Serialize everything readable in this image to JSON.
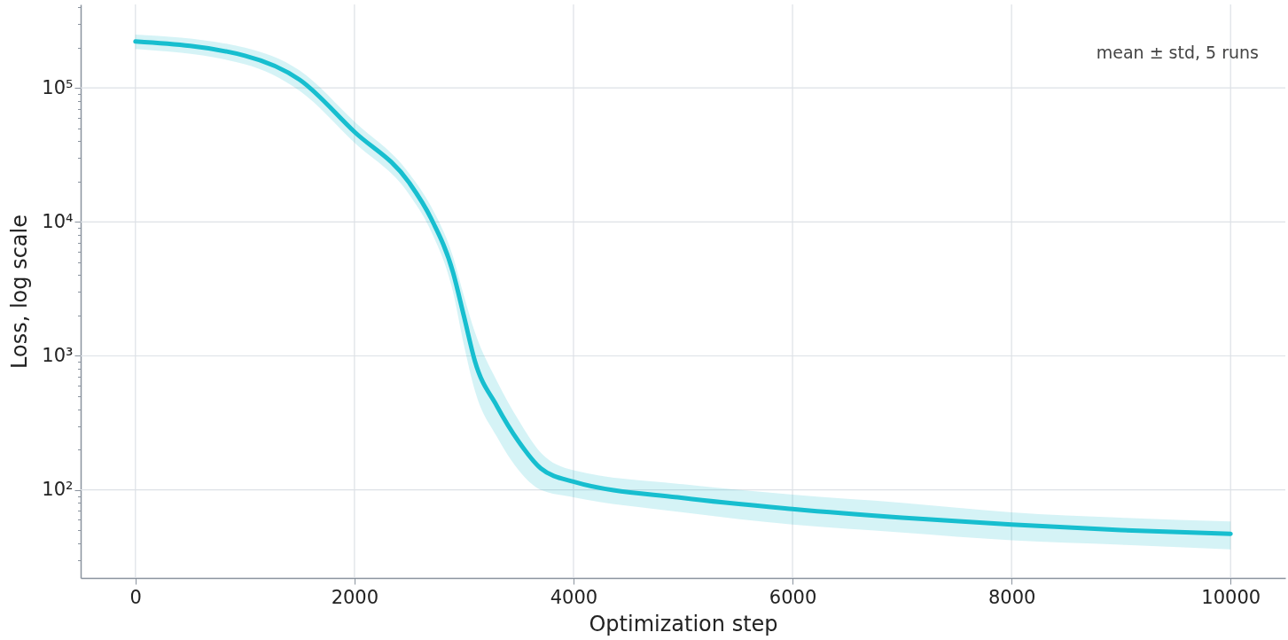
{
  "chart_data": {
    "type": "line",
    "xlabel": "Optimization step",
    "ylabel": "Loss, log scale",
    "log": "y",
    "grid": true,
    "marker": "none",
    "line_style": "solid",
    "annotations": [
      "mean ± std, 5 runs"
    ],
    "x": [
      0,
      1000,
      1500,
      2000,
      2500,
      2700,
      2900,
      3000,
      3100,
      3300,
      3500,
      3700,
      4000,
      5000,
      6000,
      7000,
      8000,
      9000,
      10000
    ],
    "series": [
      {
        "color": "#17becf",
        "values": [
          222000,
          174000,
          115000,
          47000,
          19600,
          10600,
          4200,
          1970,
          912,
          423,
          229,
          145,
          115,
          87,
          72,
          62,
          55,
          50,
          47
        ],
        "lower": [
          195000,
          150000,
          95000,
          39000,
          16000,
          8500,
          3000,
          1200,
          550,
          250,
          140,
          100,
          88,
          68,
          55,
          48,
          42,
          39,
          36
        ],
        "upper": [
          250000,
          200000,
          135000,
          56000,
          23000,
          13000,
          5500,
          2800,
          1500,
          650,
          330,
          190,
          140,
          110,
          92,
          80,
          68,
          62,
          58
        ]
      }
    ],
    "xlim": [
      -500,
      10500
    ],
    "xticks": [
      0,
      2000,
      4000,
      6000,
      8000,
      10000
    ],
    "ylim": [
      22,
      420000
    ],
    "yticks": [
      {
        "value": 30,
        "label": null
      },
      {
        "value": 40,
        "label": null
      },
      {
        "value": 50,
        "label": null
      },
      {
        "value": 60,
        "label": null
      },
      {
        "value": 70,
        "label": null
      },
      {
        "value": 80,
        "label": null
      },
      {
        "value": 90,
        "label": null
      },
      {
        "value": 100,
        "label": "10²"
      },
      {
        "value": 200,
        "label": null
      },
      {
        "value": 300,
        "label": null
      },
      {
        "value": 400,
        "label": null
      },
      {
        "value": 500,
        "label": null
      },
      {
        "value": 600,
        "label": null
      },
      {
        "value": 700,
        "label": null
      },
      {
        "value": 800,
        "label": null
      },
      {
        "value": 900,
        "label": null
      },
      {
        "value": 1000,
        "label": "10³"
      },
      {
        "value": 2000,
        "label": null
      },
      {
        "value": 3000,
        "label": null
      },
      {
        "value": 4000,
        "label": null
      },
      {
        "value": 5000,
        "label": null
      },
      {
        "value": 6000,
        "label": null
      },
      {
        "value": 7000,
        "label": null
      },
      {
        "value": 8000,
        "label": null
      },
      {
        "value": 9000,
        "label": null
      },
      {
        "value": 10000,
        "label": "10⁴"
      },
      {
        "value": 20000,
        "label": null
      },
      {
        "value": 30000,
        "label": null
      },
      {
        "value": 40000,
        "label": null
      },
      {
        "value": 50000,
        "label": null
      },
      {
        "value": 60000,
        "label": null
      },
      {
        "value": 70000,
        "label": null
      },
      {
        "value": 80000,
        "label": null
      },
      {
        "value": 90000,
        "label": null
      },
      {
        "value": 100000,
        "label": "10⁵"
      },
      {
        "value": 200000,
        "label": null
      },
      {
        "value": 300000,
        "label": null
      },
      {
        "value": 400000,
        "label": null
      }
    ]
  }
}
